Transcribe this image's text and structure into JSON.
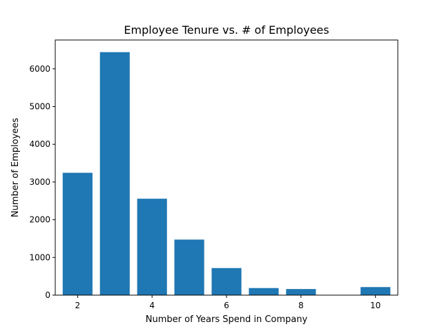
{
  "chart_data": {
    "type": "bar",
    "title": "Employee Tenure vs. # of Employees",
    "xlabel": "Number of Years Spend in Company",
    "ylabel": "Number of Employees",
    "x": [
      2,
      3,
      4,
      5,
      6,
      7,
      8,
      10
    ],
    "values": [
      3244,
      6443,
      2557,
      1473,
      718,
      188,
      162,
      214
    ],
    "xlim": [
      1.4,
      10.6
    ],
    "ylim": [
      0,
      6765
    ],
    "xticks": [
      2,
      4,
      6,
      8,
      10
    ],
    "yticks": [
      0,
      1000,
      2000,
      3000,
      4000,
      5000,
      6000
    ],
    "bar_color": "#1f77b4",
    "grid": false,
    "legend": "none"
  }
}
